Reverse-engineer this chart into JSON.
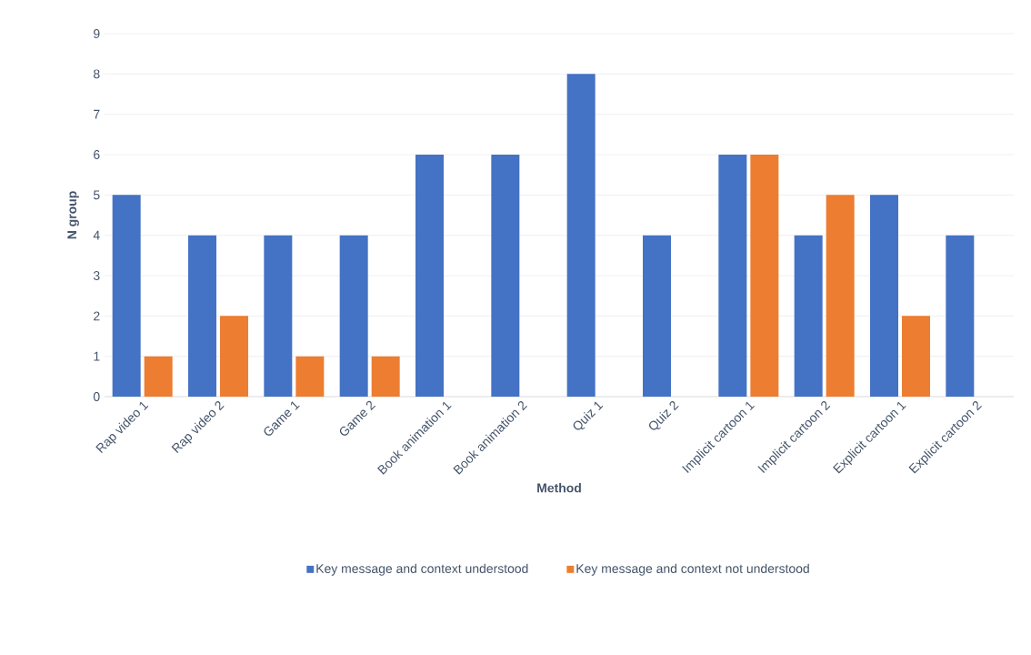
{
  "chart_data": {
    "type": "bar",
    "xlabel": "Method",
    "ylabel": "N group",
    "categories": [
      "Rap video 1",
      "Rap video 2",
      "Game 1",
      "Game 2",
      "Book animation 1",
      "Book animation 2",
      "Quiz 1",
      "Quiz 2",
      "Implicit cartoon 1",
      "Implicit cartoon 2",
      "Explicit cartoon 1",
      "Explicit cartoon 2"
    ],
    "series": [
      {
        "name": "Key message and context understood",
        "color": "#4472c4",
        "values": [
          5,
          4,
          4,
          4,
          6,
          6,
          8,
          4,
          6,
          4,
          5,
          4
        ]
      },
      {
        "name": "Key message and context not understood",
        "color": "#ed7d31",
        "values": [
          1,
          2,
          1,
          1,
          0,
          0,
          0,
          0,
          6,
          5,
          2,
          0
        ]
      }
    ],
    "ylim": [
      0,
      9
    ],
    "yticks": [
      0,
      1,
      2,
      3,
      4,
      5,
      6,
      7,
      8,
      9
    ],
    "grid": "y",
    "legend": "bottom"
  }
}
